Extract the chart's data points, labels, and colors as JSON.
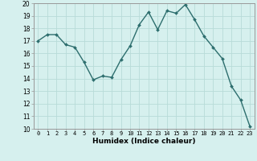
{
  "x": [
    0,
    1,
    2,
    3,
    4,
    5,
    6,
    7,
    8,
    9,
    10,
    11,
    12,
    13,
    14,
    15,
    16,
    17,
    18,
    19,
    20,
    21,
    22,
    23
  ],
  "y": [
    17.0,
    17.5,
    17.5,
    16.7,
    16.5,
    15.3,
    13.9,
    14.2,
    14.1,
    15.5,
    16.6,
    18.3,
    19.3,
    17.9,
    19.4,
    19.2,
    19.9,
    18.7,
    17.4,
    16.5,
    15.6,
    13.4,
    12.3,
    10.2
  ],
  "line_color": "#2d6e6e",
  "marker": "D",
  "marker_size": 2.0,
  "bg_color": "#d6f0ee",
  "grid_color": "#b8dbd8",
  "xlabel": "Humidex (Indice chaleur)",
  "ylim": [
    10,
    20
  ],
  "xlim_min": -0.5,
  "xlim_max": 23.5,
  "yticks": [
    10,
    11,
    12,
    13,
    14,
    15,
    16,
    17,
    18,
    19,
    20
  ],
  "xticks": [
    0,
    1,
    2,
    3,
    4,
    5,
    6,
    7,
    8,
    9,
    10,
    11,
    12,
    13,
    14,
    15,
    16,
    17,
    18,
    19,
    20,
    21,
    22,
    23
  ],
  "xlabel_fontsize": 6.5,
  "tick_fontsize": 5.0,
  "ytick_fontsize": 5.5,
  "spine_color": "#999999",
  "line_width": 1.0
}
